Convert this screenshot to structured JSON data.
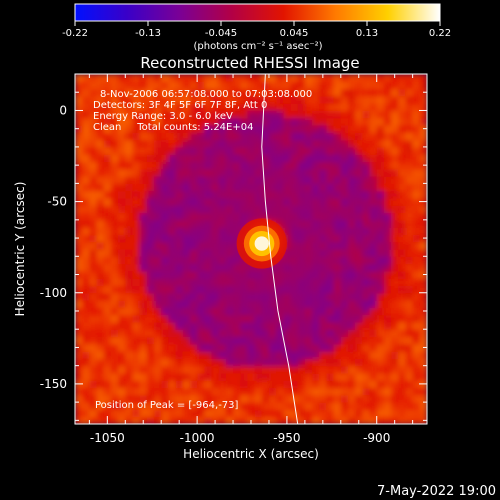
{
  "colorbar": {
    "ticks": [
      "-0.22",
      "-0.13",
      "-0.045",
      "0.045",
      "0.13",
      "0.22"
    ],
    "units": "(photons cm⁻² s⁻¹ asec⁻²)",
    "range": [
      -0.22,
      0.22
    ],
    "colors": [
      "#0010ff",
      "#3a00c8",
      "#7a0096",
      "#b20046",
      "#e21400",
      "#ff7a00",
      "#ffd000",
      "#ffffff"
    ]
  },
  "chart_data": {
    "type": "heatmap",
    "title": "Reconstructed RHESSI Image",
    "xlabel": "Heliocentric X (arcsec)",
    "ylabel": "Heliocentric Y (arcsec)",
    "xlim": [
      -1068,
      -872
    ],
    "ylim": [
      -172,
      20
    ],
    "x_ticks": [
      "-1050",
      "-1000",
      "-950",
      "-900"
    ],
    "x_tick_values": [
      -1050,
      -1000,
      -950,
      -900
    ],
    "y_ticks": [
      "0",
      "-50",
      "-100",
      "-150"
    ],
    "y_tick_values": [
      0,
      -50,
      -100,
      -150
    ],
    "annotations": {
      "time": "8-Nov-2006 06:57:08.000 to 07:03:08.000",
      "detectors": "Detectors: 3F 4F 5F 6F 7F 8F, Att 0",
      "energy": "Energy Range: 3.0 - 6.0 keV",
      "clean": "Clean     Total counts: 5.24E+04",
      "peak": "Position of Peak = [-964,-73]"
    },
    "peak": {
      "x": -964,
      "y": -73,
      "value": 0.22
    },
    "limb_curve": [
      [
        -962,
        20
      ],
      [
        -963,
        0
      ],
      [
        -964,
        -20
      ],
      [
        -962,
        -50
      ],
      [
        -959,
        -80
      ],
      [
        -955,
        -110
      ],
      [
        -949,
        -140
      ],
      [
        -944,
        -172
      ]
    ],
    "background_level": -0.06,
    "ring_level": 0.06
  },
  "footer": {
    "date": "7-May-2022 19:00"
  }
}
